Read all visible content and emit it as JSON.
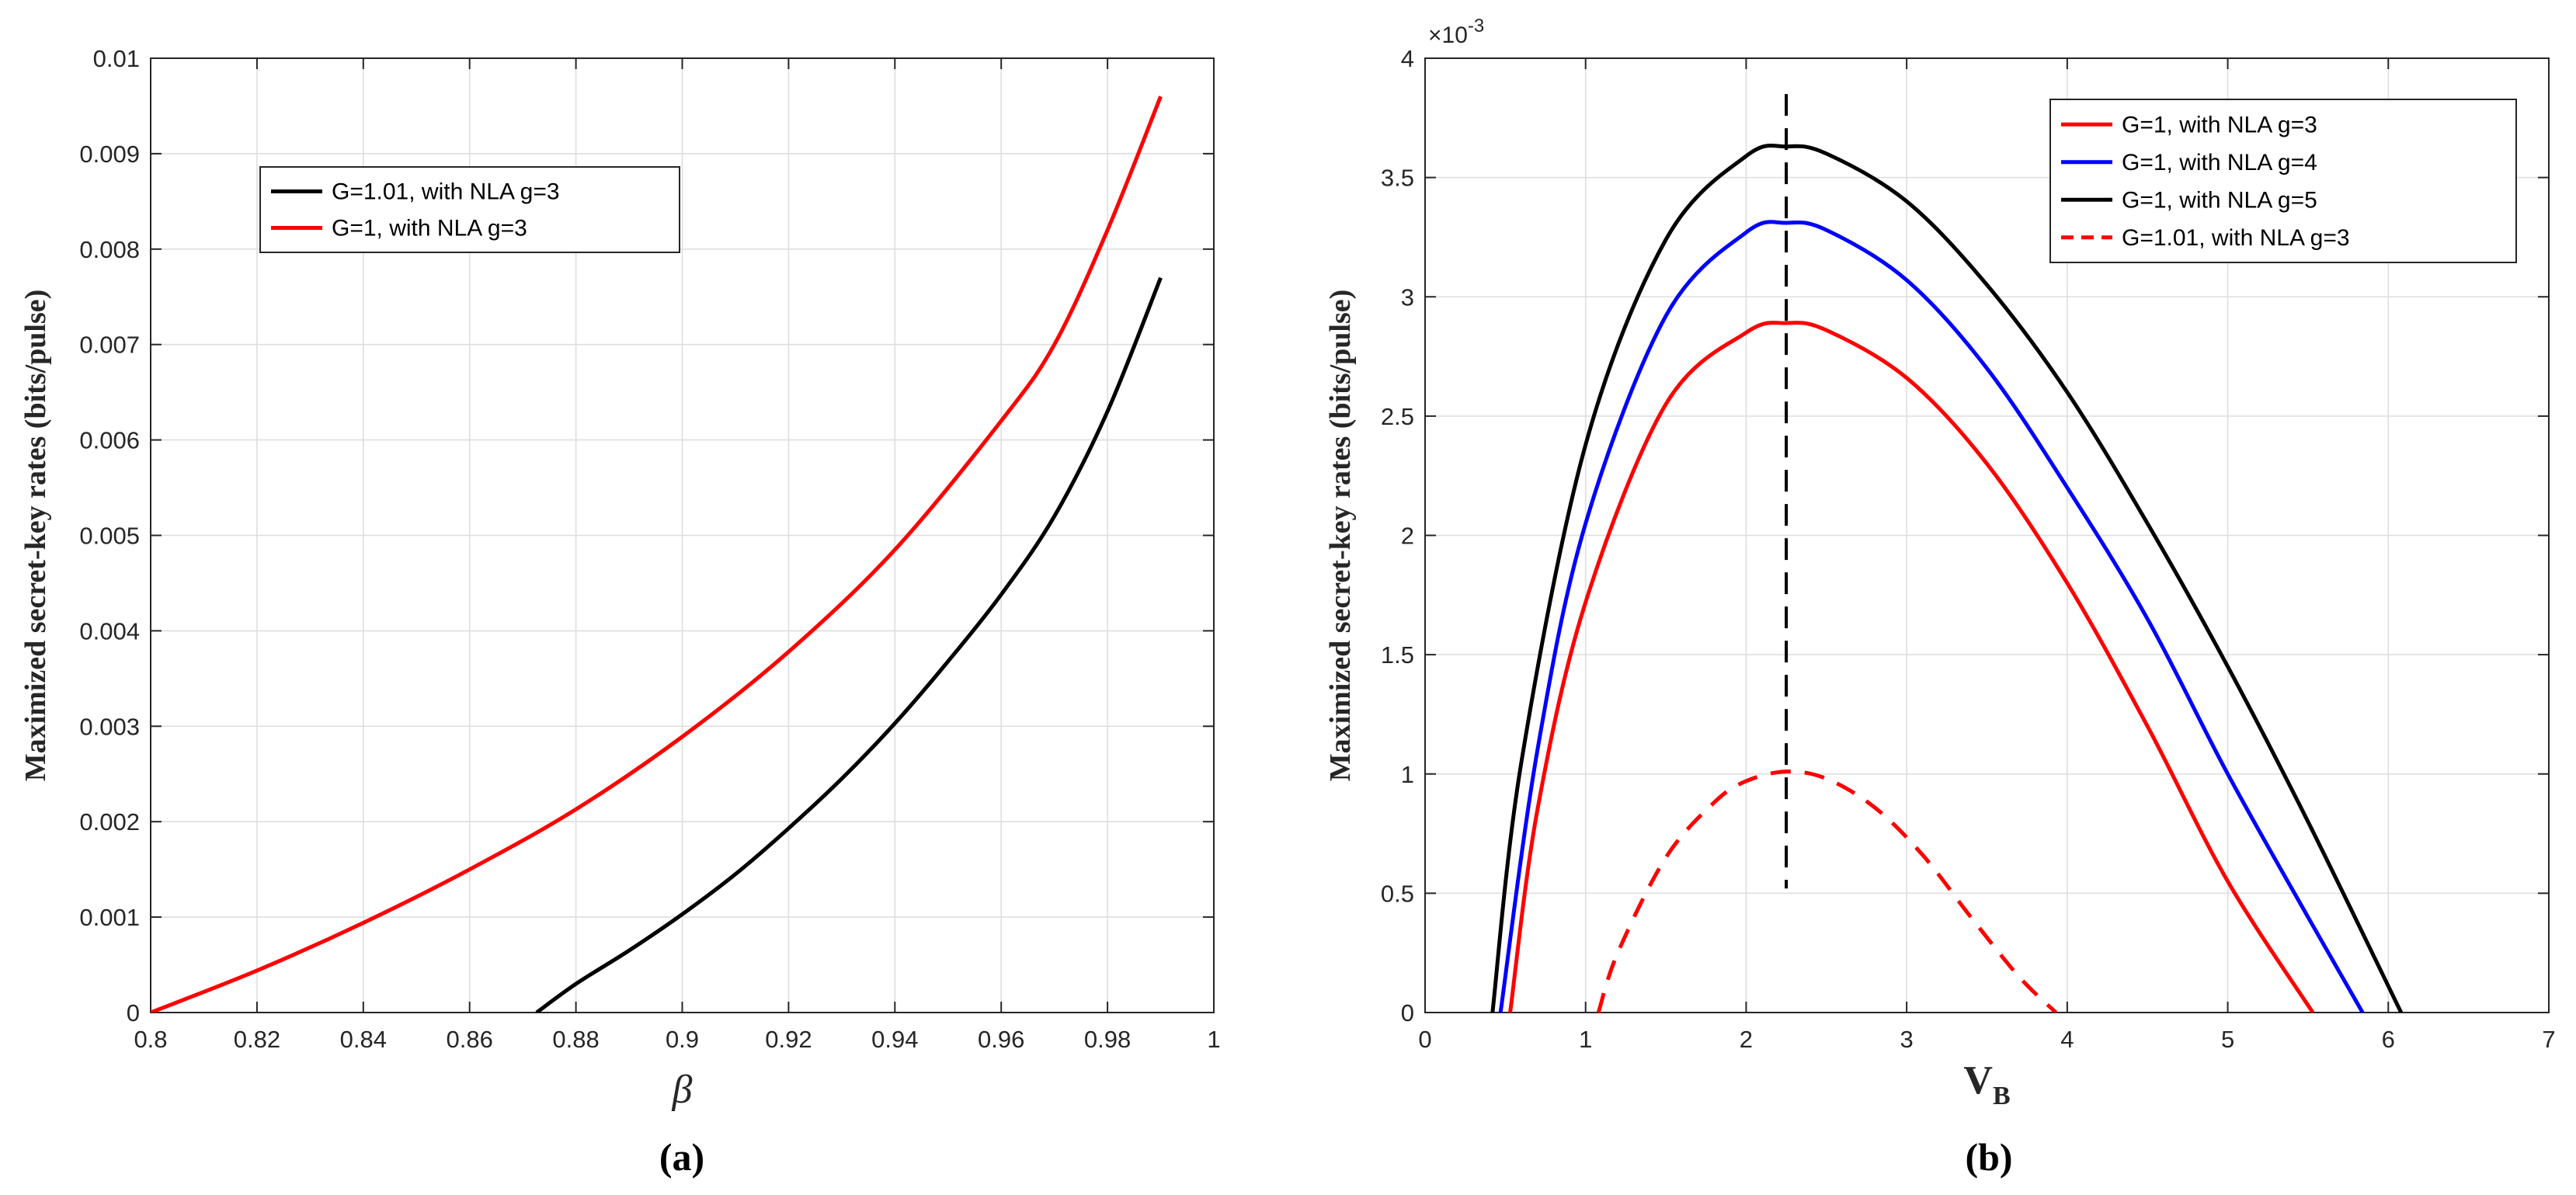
{
  "chart_data": [
    {
      "type": "line",
      "caption": "(a)",
      "xlabel": "β",
      "ylabel": "Maximized secret-key rates (bits/pulse)",
      "xlim": [
        0.8,
        1.0
      ],
      "ylim": [
        0,
        0.01
      ],
      "grid": true,
      "legend_position": "top-left",
      "xticks": [
        0.8,
        0.82,
        0.84,
        0.86,
        0.88,
        0.9,
        0.92,
        0.94,
        0.96,
        0.98,
        1
      ],
      "xtick_labels": [
        "0.8",
        "0.82",
        "0.84",
        "0.86",
        "0.88",
        "0.9",
        "0.92",
        "0.94",
        "0.96",
        "0.98",
        "1"
      ],
      "yticks": [
        0,
        0.001,
        0.002,
        0.003,
        0.004,
        0.005,
        0.006,
        0.007,
        0.008,
        0.009,
        0.01
      ],
      "ytick_labels": [
        "0",
        "0.001",
        "0.002",
        "0.003",
        "0.004",
        "0.005",
        "0.006",
        "0.007",
        "0.008",
        "0.009",
        "0.01"
      ],
      "series": [
        {
          "name": "G=1.01, with NLA g=3",
          "color": "#000000",
          "style": "solid",
          "x": [
            0.8726,
            0.88,
            0.89,
            0.9,
            0.91,
            0.92,
            0.93,
            0.94,
            0.95,
            0.96,
            0.97,
            0.98,
            0.99
          ],
          "y": [
            0.0,
            0.0003,
            0.00065,
            0.00103,
            0.00145,
            0.00193,
            0.00245,
            0.00303,
            0.00368,
            0.00438,
            0.0052,
            0.0063,
            0.0077
          ]
        },
        {
          "name": "G=1, with NLA g=3",
          "color": "#ff0000",
          "style": "solid",
          "x": [
            0.8,
            0.82,
            0.84,
            0.86,
            0.88,
            0.9,
            0.92,
            0.94,
            0.96,
            0.97,
            0.98,
            0.99
          ],
          "y": [
            0.0,
            0.00044,
            0.00094,
            0.0015,
            0.00213,
            0.00289,
            0.00378,
            0.00485,
            0.0062,
            0.007,
            0.0082,
            0.0096
          ]
        }
      ]
    },
    {
      "type": "line",
      "caption": "(b)",
      "xlabel": "V",
      "xlabel_subscript": "B",
      "ylabel": "Maximized secret-key rates (bits/pulse)",
      "xlim": [
        0,
        7
      ],
      "ylim": [
        0,
        4
      ],
      "y_multiplier_base": "×10",
      "y_multiplier_exp": "-3",
      "grid": true,
      "legend_position": "top-right",
      "xticks": [
        0,
        1,
        2,
        3,
        4,
        5,
        6,
        7
      ],
      "xtick_labels": [
        "0",
        "1",
        "2",
        "3",
        "4",
        "5",
        "6",
        "7"
      ],
      "yticks": [
        0,
        0.5,
        1,
        1.5,
        2,
        2.5,
        3,
        3.5,
        4
      ],
      "ytick_labels": [
        "0",
        "0.5",
        "1",
        "1.5",
        "2",
        "2.5",
        "3",
        "3.5",
        "4"
      ],
      "vline": {
        "x": 2.25,
        "y_range": [
          0.52,
          3.85
        ],
        "color": "#000000",
        "style": "dashed"
      },
      "series": [
        {
          "name": "G=1, with NLA g=3",
          "color": "#ff0000",
          "style": "solid",
          "x": [
            0.53,
            0.7,
            1.0,
            1.5,
            2.0,
            2.25,
            2.5,
            3.0,
            3.5,
            4.0,
            4.5,
            5.0,
            5.53
          ],
          "y": [
            0.0,
            0.85,
            1.72,
            2.55,
            2.85,
            2.89,
            2.86,
            2.66,
            2.3,
            1.8,
            1.2,
            0.55,
            0.0
          ]
        },
        {
          "name": "G=1, with NLA g=4",
          "color": "#0000ff",
          "style": "solid",
          "x": [
            0.47,
            0.7,
            1.0,
            1.5,
            2.0,
            2.25,
            2.5,
            3.0,
            3.5,
            4.0,
            4.5,
            5.0,
            5.5,
            5.84
          ],
          "y": [
            0.0,
            1.1,
            2.05,
            2.92,
            3.27,
            3.31,
            3.28,
            3.07,
            2.7,
            2.2,
            1.65,
            1.0,
            0.4,
            0.0
          ]
        },
        {
          "name": "G=1, with NLA g=5",
          "color": "#000000",
          "style": "solid",
          "x": [
            0.42,
            0.6,
            1.0,
            1.5,
            2.0,
            2.25,
            2.5,
            3.0,
            3.5,
            4.0,
            4.5,
            5.0,
            5.5,
            6.08
          ],
          "y": [
            0.0,
            1.05,
            2.38,
            3.24,
            3.59,
            3.63,
            3.6,
            3.4,
            3.05,
            2.6,
            2.05,
            1.45,
            0.8,
            0.0
          ]
        },
        {
          "name": "G=1.01, with NLA g=3",
          "color": "#ff0000",
          "style": "dashed",
          "x": [
            1.08,
            1.2,
            1.5,
            1.8,
            2.0,
            2.25,
            2.5,
            2.8,
            3.1,
            3.4,
            3.7,
            3.93
          ],
          "y": [
            0.0,
            0.25,
            0.65,
            0.88,
            0.97,
            1.01,
            0.98,
            0.86,
            0.66,
            0.4,
            0.15,
            0.0
          ]
        }
      ]
    }
  ]
}
